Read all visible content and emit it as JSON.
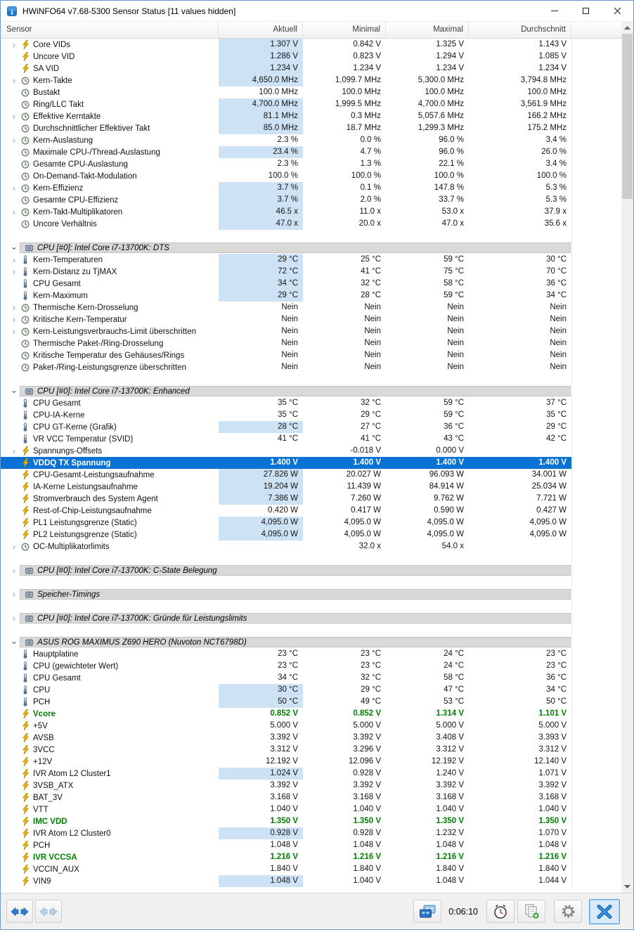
{
  "window": {
    "title": "HWiNFO64 v7.68-5300 Sensor Status [11 values hidden]"
  },
  "columns": [
    "Sensor",
    "Aktuell",
    "Minimal",
    "Maximal",
    "Durchschnitt"
  ],
  "colors": {
    "value_highlight": "#cde3f5",
    "selected_bg": "#0a72d4",
    "green_value": "#008000",
    "section_bg": "#d9d9d9",
    "accent_blue": "#2d7cd4"
  },
  "icons": {
    "app": "hwinfo-chip",
    "voltage": "lightning-bolt",
    "frequency": "clock-dial",
    "temperature": "thermometer",
    "section": "memory-chip",
    "nav": "left-right-arrows",
    "sensor_windows": "circuit-boards",
    "clock": "alarm-clock",
    "report": "copy-pages-plus",
    "settings": "gear",
    "close_sensors": "blue-x"
  },
  "statusbar": {
    "time": "0:06:10"
  },
  "rows": [
    {
      "kind": "sensor",
      "icon": "voltage-icon",
      "expand": true,
      "label": "Core VIDs",
      "values": [
        "1.307 V",
        "0.842 V",
        "1.325 V",
        "1.143 V"
      ],
      "hl": true
    },
    {
      "kind": "sensor",
      "icon": "voltage-icon",
      "label": "Uncore VID",
      "values": [
        "1.286 V",
        "0.823 V",
        "1.294 V",
        "1.085 V"
      ],
      "hl": true
    },
    {
      "kind": "sensor",
      "icon": "voltage-icon",
      "label": "SA VID",
      "values": [
        "1.234 V",
        "1.234 V",
        "1.234 V",
        "1.234 V"
      ],
      "hl": true
    },
    {
      "kind": "sensor",
      "icon": "frequency-icon",
      "expand": true,
      "label": "Kern-Takte",
      "values": [
        "4,650.0 MHz",
        "1,099.7 MHz",
        "5,300.0 MHz",
        "3,794.8 MHz"
      ],
      "hl": true
    },
    {
      "kind": "sensor",
      "icon": "frequency-icon",
      "label": "Bustakt",
      "values": [
        "100.0 MHz",
        "100.0 MHz",
        "100.0 MHz",
        "100.0 MHz"
      ],
      "hl": false
    },
    {
      "kind": "sensor",
      "icon": "frequency-icon",
      "label": "Ring/LLC Takt",
      "values": [
        "4,700.0 MHz",
        "1,999.5 MHz",
        "4,700.0 MHz",
        "3,561.9 MHz"
      ],
      "hl": true
    },
    {
      "kind": "sensor",
      "icon": "frequency-icon",
      "expand": true,
      "label": "Effektive Kerntakte",
      "values": [
        "81.1 MHz",
        "0.3 MHz",
        "5,057.6 MHz",
        "166.2 MHz"
      ],
      "hl": true
    },
    {
      "kind": "sensor",
      "icon": "frequency-icon",
      "label": "Durchschnittlicher Effektiver Takt",
      "values": [
        "85.0 MHz",
        "18.7 MHz",
        "1,299.3 MHz",
        "175.2 MHz"
      ],
      "hl": true
    },
    {
      "kind": "sensor",
      "icon": "frequency-icon",
      "expand": true,
      "label": "Kern-Auslastung",
      "values": [
        "2.3 %",
        "0.0 %",
        "96.0 %",
        "3.4 %"
      ],
      "hl": false
    },
    {
      "kind": "sensor",
      "icon": "frequency-icon",
      "label": "Maximale CPU-/Thread-Auslastung",
      "values": [
        "23.4 %",
        "4.7 %",
        "96.0 %",
        "26.0 %"
      ],
      "hl": true
    },
    {
      "kind": "sensor",
      "icon": "frequency-icon",
      "label": "Gesamte CPU-Auslastung",
      "values": [
        "2.3 %",
        "1.3 %",
        "22.1 %",
        "3.4 %"
      ],
      "hl": false
    },
    {
      "kind": "sensor",
      "icon": "frequency-icon",
      "label": "On-Demand-Takt-Modulation",
      "values": [
        "100.0 %",
        "100.0 %",
        "100.0 %",
        "100.0 %"
      ],
      "hl": false
    },
    {
      "kind": "sensor",
      "icon": "frequency-icon",
      "expand": true,
      "label": "Kern-Effizienz",
      "values": [
        "3.7 %",
        "0.1 %",
        "147.8 %",
        "5.3 %"
      ],
      "hl": true
    },
    {
      "kind": "sensor",
      "icon": "frequency-icon",
      "label": "Gesamte CPU-Effizienz",
      "values": [
        "3.7 %",
        "2.0 %",
        "33.7 %",
        "5.3 %"
      ],
      "hl": true
    },
    {
      "kind": "sensor",
      "icon": "frequency-icon",
      "expand": true,
      "label": "Kern-Takt-Multiplikatoren",
      "values": [
        "46.5 x",
        "11.0 x",
        "53.0 x",
        "37.9 x"
      ],
      "hl": true
    },
    {
      "kind": "sensor",
      "icon": "frequency-icon",
      "label": "Uncore Verhältnis",
      "values": [
        "47.0 x",
        "20.0 x",
        "47.0 x",
        "35.6 x"
      ],
      "hl": true
    },
    {
      "kind": "gap"
    },
    {
      "kind": "section",
      "state": "expanded",
      "label": "CPU [#0]: Intel Core i7-13700K: DTS"
    },
    {
      "kind": "sensor",
      "icon": "temperature-icon",
      "expand": true,
      "label": "Kern-Temperaturen",
      "values": [
        "29 °C",
        "25 °C",
        "59 °C",
        "30 °C"
      ],
      "hl": true
    },
    {
      "kind": "sensor",
      "icon": "temperature-icon",
      "expand": true,
      "label": "Kern-Distanz zu TjMAX",
      "values": [
        "72 °C",
        "41 °C",
        "75 °C",
        "70 °C"
      ],
      "hl": true
    },
    {
      "kind": "sensor",
      "icon": "temperature-icon",
      "label": "CPU Gesamt",
      "values": [
        "34 °C",
        "32 °C",
        "58 °C",
        "36 °C"
      ],
      "hl": true
    },
    {
      "kind": "sensor",
      "icon": "temperature-icon",
      "label": "Kern-Maximum",
      "values": [
        "29 °C",
        "28 °C",
        "59 °C",
        "34 °C"
      ],
      "hl": true
    },
    {
      "kind": "sensor",
      "icon": "frequency-icon",
      "expand": true,
      "label": "Thermische Kern-Drosselung",
      "values": [
        "Nein",
        "Nein",
        "Nein",
        "Nein"
      ],
      "hl": false
    },
    {
      "kind": "sensor",
      "icon": "frequency-icon",
      "expand": true,
      "label": "Kritische Kern-Temperatur",
      "values": [
        "Nein",
        "Nein",
        "Nein",
        "Nein"
      ],
      "hl": false
    },
    {
      "kind": "sensor",
      "icon": "frequency-icon",
      "expand": true,
      "label": "Kern-Leistungsverbrauchs-Limit überschritten",
      "values": [
        "Nein",
        "Nein",
        "Nein",
        "Nein"
      ],
      "hl": false
    },
    {
      "kind": "sensor",
      "icon": "frequency-icon",
      "label": "Thermische Paket-/Ring-Drosselung",
      "values": [
        "Nein",
        "Nein",
        "Nein",
        "Nein"
      ],
      "hl": false
    },
    {
      "kind": "sensor",
      "icon": "frequency-icon",
      "label": "Kritische Temperatur des Gehäuses/Rings",
      "values": [
        "Nein",
        "Nein",
        "Nein",
        "Nein"
      ],
      "hl": false
    },
    {
      "kind": "sensor",
      "icon": "frequency-icon",
      "label": "Paket-/Ring-Leistungsgrenze überschritten",
      "values": [
        "Nein",
        "Nein",
        "Nein",
        "Nein"
      ],
      "hl": false
    },
    {
      "kind": "gap"
    },
    {
      "kind": "section",
      "state": "expanded",
      "label": "CPU [#0]: Intel Core i7-13700K: Enhanced"
    },
    {
      "kind": "sensor",
      "icon": "temperature-icon",
      "label": "CPU Gesamt",
      "values": [
        "35 °C",
        "32 °C",
        "59 °C",
        "37 °C"
      ],
      "hl": false
    },
    {
      "kind": "sensor",
      "icon": "temperature-icon",
      "label": "CPU-IA-Kerne",
      "values": [
        "35 °C",
        "29 °C",
        "59 °C",
        "35 °C"
      ],
      "hl": false
    },
    {
      "kind": "sensor",
      "icon": "temperature-icon",
      "label": "CPU GT-Kerne (Grafik)",
      "values": [
        "28 °C",
        "27 °C",
        "36 °C",
        "29 °C"
      ],
      "hl": true
    },
    {
      "kind": "sensor",
      "icon": "temperature-icon",
      "label": "VR VCC Temperatur (SVID)",
      "values": [
        "41 °C",
        "41 °C",
        "43 °C",
        "42 °C"
      ],
      "hl": false
    },
    {
      "kind": "sensor",
      "icon": "voltage-icon",
      "expand": true,
      "label": "Spannungs-Offsets",
      "values": [
        "",
        "-0.018 V",
        "0.000 V",
        ""
      ],
      "hl": false
    },
    {
      "kind": "sensor",
      "icon": "voltage-icon",
      "label": "VDDQ TX Spannung",
      "values": [
        "1.400 V",
        "1.400 V",
        "1.400 V",
        "1.400 V"
      ],
      "hl": false,
      "style": "selected"
    },
    {
      "kind": "sensor",
      "icon": "voltage-icon",
      "label": "CPU-Gesamt-Leistungsaufnahme",
      "values": [
        "27.826 W",
        "20.027 W",
        "96.093 W",
        "34.001 W"
      ],
      "hl": true
    },
    {
      "kind": "sensor",
      "icon": "voltage-icon",
      "label": "IA-Kerne Leistungsaufnahme",
      "values": [
        "19.204 W",
        "11.439 W",
        "84.914 W",
        "25.034 W"
      ],
      "hl": true
    },
    {
      "kind": "sensor",
      "icon": "voltage-icon",
      "label": "Stromverbrauch des System Agent",
      "values": [
        "7.386 W",
        "7.260 W",
        "9.762 W",
        "7.721 W"
      ],
      "hl": true
    },
    {
      "kind": "sensor",
      "icon": "voltage-icon",
      "label": "Rest-of-Chip-Leistungsaufnahme",
      "values": [
        "0.420 W",
        "0.417 W",
        "0.590 W",
        "0.427 W"
      ],
      "hl": false
    },
    {
      "kind": "sensor",
      "icon": "voltage-icon",
      "label": "PL1 Leistungsgrenze (Static)",
      "values": [
        "4,095.0 W",
        "4,095.0 W",
        "4,095.0 W",
        "4,095.0 W"
      ],
      "hl": true
    },
    {
      "kind": "sensor",
      "icon": "voltage-icon",
      "label": "PL2 Leistungsgrenze (Static)",
      "values": [
        "4,095.0 W",
        "4,095.0 W",
        "4,095.0 W",
        "4,095.0 W"
      ],
      "hl": true
    },
    {
      "kind": "sensor",
      "icon": "frequency-icon",
      "expand": true,
      "label": "OC-Multiplikatorlimits",
      "values": [
        "",
        "32.0 x",
        "54.0 x",
        ""
      ],
      "hl": false
    },
    {
      "kind": "gap"
    },
    {
      "kind": "section",
      "state": "collapsed",
      "label": "CPU [#0]: Intel Core i7-13700K: C-State Belegung"
    },
    {
      "kind": "gap"
    },
    {
      "kind": "section",
      "state": "collapsed",
      "label": "Speicher-Timings"
    },
    {
      "kind": "gap"
    },
    {
      "kind": "section",
      "state": "collapsed",
      "label": "CPU [#0]: Intel Core i7-13700K: Gründe für Leistungslimits"
    },
    {
      "kind": "gap"
    },
    {
      "kind": "section",
      "state": "expanded",
      "label": "ASUS ROG MAXIMUS Z690 HERO (Nuvoton NCT6798D)"
    },
    {
      "kind": "sensor",
      "icon": "temperature-icon",
      "label": "Hauptplatine",
      "values": [
        "23 °C",
        "23 °C",
        "24 °C",
        "23 °C"
      ],
      "hl": false
    },
    {
      "kind": "sensor",
      "icon": "temperature-icon",
      "label": "CPU (gewichteter Wert)",
      "values": [
        "23 °C",
        "23 °C",
        "24 °C",
        "23 °C"
      ],
      "hl": false
    },
    {
      "kind": "sensor",
      "icon": "temperature-icon",
      "label": "CPU Gesamt",
      "values": [
        "34 °C",
        "32 °C",
        "58 °C",
        "36 °C"
      ],
      "hl": false
    },
    {
      "kind": "sensor",
      "icon": "temperature-icon",
      "label": "CPU",
      "values": [
        "30 °C",
        "29 °C",
        "47 °C",
        "34 °C"
      ],
      "hl": true
    },
    {
      "kind": "sensor",
      "icon": "temperature-icon",
      "label": "PCH",
      "values": [
        "50 °C",
        "49 °C",
        "53 °C",
        "50 °C"
      ],
      "hl": true
    },
    {
      "kind": "sensor",
      "icon": "voltage-icon",
      "label": "Vcore",
      "values": [
        "0.852 V",
        "0.852 V",
        "1.314 V",
        "1.101 V"
      ],
      "hl": false,
      "style": "green"
    },
    {
      "kind": "sensor",
      "icon": "voltage-icon",
      "label": "+5V",
      "values": [
        "5.000 V",
        "5.000 V",
        "5.000 V",
        "5.000 V"
      ],
      "hl": false
    },
    {
      "kind": "sensor",
      "icon": "voltage-icon",
      "label": "AVSB",
      "values": [
        "3.392 V",
        "3.392 V",
        "3.408 V",
        "3.393 V"
      ],
      "hl": false
    },
    {
      "kind": "sensor",
      "icon": "voltage-icon",
      "label": "3VCC",
      "values": [
        "3.312 V",
        "3.296 V",
        "3.312 V",
        "3.312 V"
      ],
      "hl": false
    },
    {
      "kind": "sensor",
      "icon": "voltage-icon",
      "label": "+12V",
      "values": [
        "12.192 V",
        "12.096 V",
        "12.192 V",
        "12.140 V"
      ],
      "hl": false
    },
    {
      "kind": "sensor",
      "icon": "voltage-icon",
      "label": "IVR Atom L2 Cluster1",
      "values": [
        "1.024 V",
        "0.928 V",
        "1.240 V",
        "1.071 V"
      ],
      "hl": true
    },
    {
      "kind": "sensor",
      "icon": "voltage-icon",
      "label": "3VSB_ATX",
      "values": [
        "3.392 V",
        "3.392 V",
        "3.392 V",
        "3.392 V"
      ],
      "hl": false
    },
    {
      "kind": "sensor",
      "icon": "voltage-icon",
      "label": "BAT_3V",
      "values": [
        "3.168 V",
        "3.168 V",
        "3.168 V",
        "3.168 V"
      ],
      "hl": false
    },
    {
      "kind": "sensor",
      "icon": "voltage-icon",
      "label": "VTT",
      "values": [
        "1.040 V",
        "1.040 V",
        "1.040 V",
        "1.040 V"
      ],
      "hl": false
    },
    {
      "kind": "sensor",
      "icon": "voltage-icon",
      "label": "IMC VDD",
      "values": [
        "1.350 V",
        "1.350 V",
        "1.350 V",
        "1.350 V"
      ],
      "hl": false,
      "style": "green"
    },
    {
      "kind": "sensor",
      "icon": "voltage-icon",
      "label": "IVR Atom L2 Cluster0",
      "values": [
        "0.928 V",
        "0.928 V",
        "1.232 V",
        "1.070 V"
      ],
      "hl": true
    },
    {
      "kind": "sensor",
      "icon": "voltage-icon",
      "label": "PCH",
      "values": [
        "1.048 V",
        "1.048 V",
        "1.048 V",
        "1.048 V"
      ],
      "hl": false
    },
    {
      "kind": "sensor",
      "icon": "voltage-icon",
      "label": "IVR VCCSA",
      "values": [
        "1.216 V",
        "1.216 V",
        "1.216 V",
        "1.216 V"
      ],
      "hl": false,
      "style": "green"
    },
    {
      "kind": "sensor",
      "icon": "voltage-icon",
      "label": "VCCIN_AUX",
      "values": [
        "1.840 V",
        "1.840 V",
        "1.840 V",
        "1.840 V"
      ],
      "hl": false
    },
    {
      "kind": "sensor",
      "icon": "voltage-icon",
      "label": "VIN9",
      "values": [
        "1.048 V",
        "1.040 V",
        "1.048 V",
        "1.044 V"
      ],
      "hl": true
    }
  ]
}
